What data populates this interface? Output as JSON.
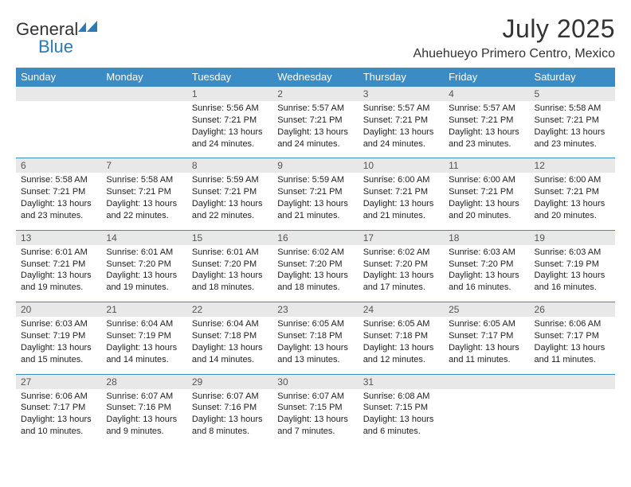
{
  "brand": {
    "part1": "General",
    "part2": "Blue"
  },
  "title": "July 2025",
  "location": "Ahuehueyo Primero Centro, Mexico",
  "colors": {
    "header_bg": "#3b8bc4",
    "header_fg": "#ffffff",
    "numrow_bg": "#e8e8e8",
    "row_border": "#3b8bc4",
    "brand_blue": "#2a7ab8"
  },
  "days": [
    "Sunday",
    "Monday",
    "Tuesday",
    "Wednesday",
    "Thursday",
    "Friday",
    "Saturday"
  ],
  "weeks": [
    [
      null,
      null,
      {
        "n": "1",
        "sr": "Sunrise: 5:56 AM",
        "ss": "Sunset: 7:21 PM",
        "dl": "Daylight: 13 hours and 24 minutes."
      },
      {
        "n": "2",
        "sr": "Sunrise: 5:57 AM",
        "ss": "Sunset: 7:21 PM",
        "dl": "Daylight: 13 hours and 24 minutes."
      },
      {
        "n": "3",
        "sr": "Sunrise: 5:57 AM",
        "ss": "Sunset: 7:21 PM",
        "dl": "Daylight: 13 hours and 24 minutes."
      },
      {
        "n": "4",
        "sr": "Sunrise: 5:57 AM",
        "ss": "Sunset: 7:21 PM",
        "dl": "Daylight: 13 hours and 23 minutes."
      },
      {
        "n": "5",
        "sr": "Sunrise: 5:58 AM",
        "ss": "Sunset: 7:21 PM",
        "dl": "Daylight: 13 hours and 23 minutes."
      }
    ],
    [
      {
        "n": "6",
        "sr": "Sunrise: 5:58 AM",
        "ss": "Sunset: 7:21 PM",
        "dl": "Daylight: 13 hours and 23 minutes."
      },
      {
        "n": "7",
        "sr": "Sunrise: 5:58 AM",
        "ss": "Sunset: 7:21 PM",
        "dl": "Daylight: 13 hours and 22 minutes."
      },
      {
        "n": "8",
        "sr": "Sunrise: 5:59 AM",
        "ss": "Sunset: 7:21 PM",
        "dl": "Daylight: 13 hours and 22 minutes."
      },
      {
        "n": "9",
        "sr": "Sunrise: 5:59 AM",
        "ss": "Sunset: 7:21 PM",
        "dl": "Daylight: 13 hours and 21 minutes."
      },
      {
        "n": "10",
        "sr": "Sunrise: 6:00 AM",
        "ss": "Sunset: 7:21 PM",
        "dl": "Daylight: 13 hours and 21 minutes."
      },
      {
        "n": "11",
        "sr": "Sunrise: 6:00 AM",
        "ss": "Sunset: 7:21 PM",
        "dl": "Daylight: 13 hours and 20 minutes."
      },
      {
        "n": "12",
        "sr": "Sunrise: 6:00 AM",
        "ss": "Sunset: 7:21 PM",
        "dl": "Daylight: 13 hours and 20 minutes."
      }
    ],
    [
      {
        "n": "13",
        "sr": "Sunrise: 6:01 AM",
        "ss": "Sunset: 7:21 PM",
        "dl": "Daylight: 13 hours and 19 minutes."
      },
      {
        "n": "14",
        "sr": "Sunrise: 6:01 AM",
        "ss": "Sunset: 7:20 PM",
        "dl": "Daylight: 13 hours and 19 minutes."
      },
      {
        "n": "15",
        "sr": "Sunrise: 6:01 AM",
        "ss": "Sunset: 7:20 PM",
        "dl": "Daylight: 13 hours and 18 minutes."
      },
      {
        "n": "16",
        "sr": "Sunrise: 6:02 AM",
        "ss": "Sunset: 7:20 PM",
        "dl": "Daylight: 13 hours and 18 minutes."
      },
      {
        "n": "17",
        "sr": "Sunrise: 6:02 AM",
        "ss": "Sunset: 7:20 PM",
        "dl": "Daylight: 13 hours and 17 minutes."
      },
      {
        "n": "18",
        "sr": "Sunrise: 6:03 AM",
        "ss": "Sunset: 7:20 PM",
        "dl": "Daylight: 13 hours and 16 minutes."
      },
      {
        "n": "19",
        "sr": "Sunrise: 6:03 AM",
        "ss": "Sunset: 7:19 PM",
        "dl": "Daylight: 13 hours and 16 minutes."
      }
    ],
    [
      {
        "n": "20",
        "sr": "Sunrise: 6:03 AM",
        "ss": "Sunset: 7:19 PM",
        "dl": "Daylight: 13 hours and 15 minutes."
      },
      {
        "n": "21",
        "sr": "Sunrise: 6:04 AM",
        "ss": "Sunset: 7:19 PM",
        "dl": "Daylight: 13 hours and 14 minutes."
      },
      {
        "n": "22",
        "sr": "Sunrise: 6:04 AM",
        "ss": "Sunset: 7:18 PM",
        "dl": "Daylight: 13 hours and 14 minutes."
      },
      {
        "n": "23",
        "sr": "Sunrise: 6:05 AM",
        "ss": "Sunset: 7:18 PM",
        "dl": "Daylight: 13 hours and 13 minutes."
      },
      {
        "n": "24",
        "sr": "Sunrise: 6:05 AM",
        "ss": "Sunset: 7:18 PM",
        "dl": "Daylight: 13 hours and 12 minutes."
      },
      {
        "n": "25",
        "sr": "Sunrise: 6:05 AM",
        "ss": "Sunset: 7:17 PM",
        "dl": "Daylight: 13 hours and 11 minutes."
      },
      {
        "n": "26",
        "sr": "Sunrise: 6:06 AM",
        "ss": "Sunset: 7:17 PM",
        "dl": "Daylight: 13 hours and 11 minutes."
      }
    ],
    [
      {
        "n": "27",
        "sr": "Sunrise: 6:06 AM",
        "ss": "Sunset: 7:17 PM",
        "dl": "Daylight: 13 hours and 10 minutes."
      },
      {
        "n": "28",
        "sr": "Sunrise: 6:07 AM",
        "ss": "Sunset: 7:16 PM",
        "dl": "Daylight: 13 hours and 9 minutes."
      },
      {
        "n": "29",
        "sr": "Sunrise: 6:07 AM",
        "ss": "Sunset: 7:16 PM",
        "dl": "Daylight: 13 hours and 8 minutes."
      },
      {
        "n": "30",
        "sr": "Sunrise: 6:07 AM",
        "ss": "Sunset: 7:15 PM",
        "dl": "Daylight: 13 hours and 7 minutes."
      },
      {
        "n": "31",
        "sr": "Sunrise: 6:08 AM",
        "ss": "Sunset: 7:15 PM",
        "dl": "Daylight: 13 hours and 6 minutes."
      },
      null,
      null
    ]
  ]
}
